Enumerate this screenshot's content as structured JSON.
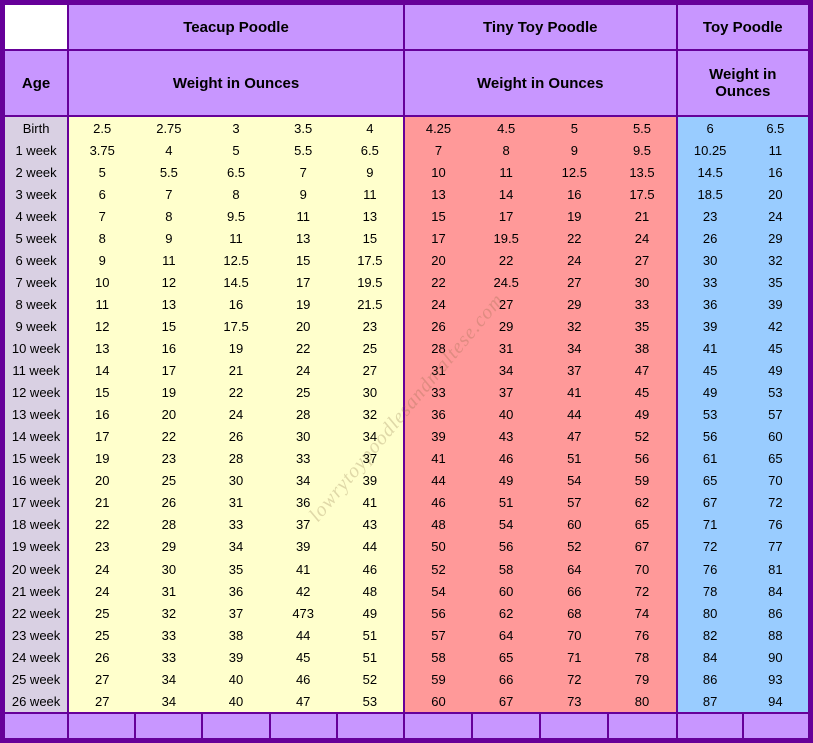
{
  "colors": {
    "border": "#660099",
    "header_bg": "#c896ff",
    "age_bg": "#d9d0e3",
    "teacup_bg": "#ffffcc",
    "tiny_bg": "#ff9999",
    "toy_bg": "#99ccff"
  },
  "watermark": "lowrytoypoodlesandmaltese.com",
  "headers": {
    "age": "Age",
    "teacup_title": "Teacup Poodle",
    "tiny_title": "Tiny Toy Poodle",
    "toy_title": "Toy Poodle",
    "weight_label": "Weight in Ounces",
    "weight_label_toy": "Weight in\nOunces"
  },
  "teacup_cols": 5,
  "tiny_cols": 4,
  "toy_cols": 2,
  "rows": [
    {
      "age": "Birth",
      "teacup": [
        "2.5",
        "2.75",
        "3",
        "3.5",
        "4"
      ],
      "tiny": [
        "4.25",
        "4.5",
        "5",
        "5.5"
      ],
      "toy": [
        "6",
        "6.5"
      ]
    },
    {
      "age": "1 week",
      "teacup": [
        "3.75",
        "4",
        "5",
        "5.5",
        "6.5"
      ],
      "tiny": [
        "7",
        "8",
        "9",
        "9.5"
      ],
      "toy": [
        "10.25",
        "11"
      ]
    },
    {
      "age": "2 week",
      "teacup": [
        "5",
        "5.5",
        "6.5",
        "7",
        "9"
      ],
      "tiny": [
        "10",
        "11",
        "12.5",
        "13.5"
      ],
      "toy": [
        "14.5",
        "16"
      ]
    },
    {
      "age": "3 week",
      "teacup": [
        "6",
        "7",
        "8",
        "9",
        "11"
      ],
      "tiny": [
        "13",
        "14",
        "16",
        "17.5"
      ],
      "toy": [
        "18.5",
        "20"
      ]
    },
    {
      "age": "4 week",
      "teacup": [
        "7",
        "8",
        "9.5",
        "11",
        "13"
      ],
      "tiny": [
        "15",
        "17",
        "19",
        "21"
      ],
      "toy": [
        "23",
        "24"
      ]
    },
    {
      "age": "5 week",
      "teacup": [
        "8",
        "9",
        "11",
        "13",
        "15"
      ],
      "tiny": [
        "17",
        "19.5",
        "22",
        "24"
      ],
      "toy": [
        "26",
        "29"
      ]
    },
    {
      "age": "6 week",
      "teacup": [
        "9",
        "11",
        "12.5",
        "15",
        "17.5"
      ],
      "tiny": [
        "20",
        "22",
        "24",
        "27"
      ],
      "toy": [
        "30",
        "32"
      ]
    },
    {
      "age": "7 week",
      "teacup": [
        "10",
        "12",
        "14.5",
        "17",
        "19.5"
      ],
      "tiny": [
        "22",
        "24.5",
        "27",
        "30"
      ],
      "toy": [
        "33",
        "35"
      ]
    },
    {
      "age": "8 week",
      "teacup": [
        "11",
        "13",
        "16",
        "19",
        "21.5"
      ],
      "tiny": [
        "24",
        "27",
        "29",
        "33"
      ],
      "toy": [
        "36",
        "39"
      ]
    },
    {
      "age": "9 week",
      "teacup": [
        "12",
        "15",
        "17.5",
        "20",
        "23"
      ],
      "tiny": [
        "26",
        "29",
        "32",
        "35"
      ],
      "toy": [
        "39",
        "42"
      ]
    },
    {
      "age": "10 week",
      "teacup": [
        "13",
        "16",
        "19",
        "22",
        "25"
      ],
      "tiny": [
        "28",
        "31",
        "34",
        "38"
      ],
      "toy": [
        "41",
        "45"
      ]
    },
    {
      "age": "11 week",
      "teacup": [
        "14",
        "17",
        "21",
        "24",
        "27"
      ],
      "tiny": [
        "31",
        "34",
        "37",
        "47"
      ],
      "toy": [
        "45",
        "49"
      ]
    },
    {
      "age": "12 week",
      "teacup": [
        "15",
        "19",
        "22",
        "25",
        "30"
      ],
      "tiny": [
        "33",
        "37",
        "41",
        "45"
      ],
      "toy": [
        "49",
        "53"
      ]
    },
    {
      "age": "13 week",
      "teacup": [
        "16",
        "20",
        "24",
        "28",
        "32"
      ],
      "tiny": [
        "36",
        "40",
        "44",
        "49"
      ],
      "toy": [
        "53",
        "57"
      ]
    },
    {
      "age": "14 week",
      "teacup": [
        "17",
        "22",
        "26",
        "30",
        "34"
      ],
      "tiny": [
        "39",
        "43",
        "47",
        "52"
      ],
      "toy": [
        "56",
        "60"
      ]
    },
    {
      "age": "15 week",
      "teacup": [
        "19",
        "23",
        "28",
        "33",
        "37"
      ],
      "tiny": [
        "41",
        "46",
        "51",
        "56"
      ],
      "toy": [
        "61",
        "65"
      ]
    },
    {
      "age": "16 week",
      "teacup": [
        "20",
        "25",
        "30",
        "34",
        "39"
      ],
      "tiny": [
        "44",
        "49",
        "54",
        "59"
      ],
      "toy": [
        "65",
        "70"
      ]
    },
    {
      "age": "17 week",
      "teacup": [
        "21",
        "26",
        "31",
        "36",
        "41"
      ],
      "tiny": [
        "46",
        "51",
        "57",
        "62"
      ],
      "toy": [
        "67",
        "72"
      ]
    },
    {
      "age": "18 week",
      "teacup": [
        "22",
        "28",
        "33",
        "37",
        "43"
      ],
      "tiny": [
        "48",
        "54",
        "60",
        "65"
      ],
      "toy": [
        "71",
        "76"
      ]
    },
    {
      "age": "19 week",
      "teacup": [
        "23",
        "29",
        "34",
        "39",
        "44"
      ],
      "tiny": [
        "50",
        "56",
        "52",
        "67"
      ],
      "toy": [
        "72",
        "77"
      ]
    },
    {
      "age": "20 week",
      "teacup": [
        "24",
        "30",
        "35",
        "41",
        "46"
      ],
      "tiny": [
        "52",
        "58",
        "64",
        "70"
      ],
      "toy": [
        "76",
        "81"
      ]
    },
    {
      "age": "21 week",
      "teacup": [
        "24",
        "31",
        "36",
        "42",
        "48"
      ],
      "tiny": [
        "54",
        "60",
        "66",
        "72"
      ],
      "toy": [
        "78",
        "84"
      ]
    },
    {
      "age": "22 week",
      "teacup": [
        "25",
        "32",
        "37",
        "473",
        "49"
      ],
      "tiny": [
        "56",
        "62",
        "68",
        "74"
      ],
      "toy": [
        "80",
        "86"
      ]
    },
    {
      "age": "23 week",
      "teacup": [
        "25",
        "33",
        "38",
        "44",
        "51"
      ],
      "tiny": [
        "57",
        "64",
        "70",
        "76"
      ],
      "toy": [
        "82",
        "88"
      ]
    },
    {
      "age": "24 week",
      "teacup": [
        "26",
        "33",
        "39",
        "45",
        "51"
      ],
      "tiny": [
        "58",
        "65",
        "71",
        "78"
      ],
      "toy": [
        "84",
        "90"
      ]
    },
    {
      "age": "25 week",
      "teacup": [
        "27",
        "34",
        "40",
        "46",
        "52"
      ],
      "tiny": [
        "59",
        "66",
        "72",
        "79"
      ],
      "toy": [
        "86",
        "93"
      ]
    },
    {
      "age": "26 week",
      "teacup": [
        "27",
        "34",
        "40",
        "47",
        "53"
      ],
      "tiny": [
        "60",
        "67",
        "73",
        "80"
      ],
      "toy": [
        "87",
        "94"
      ]
    }
  ]
}
